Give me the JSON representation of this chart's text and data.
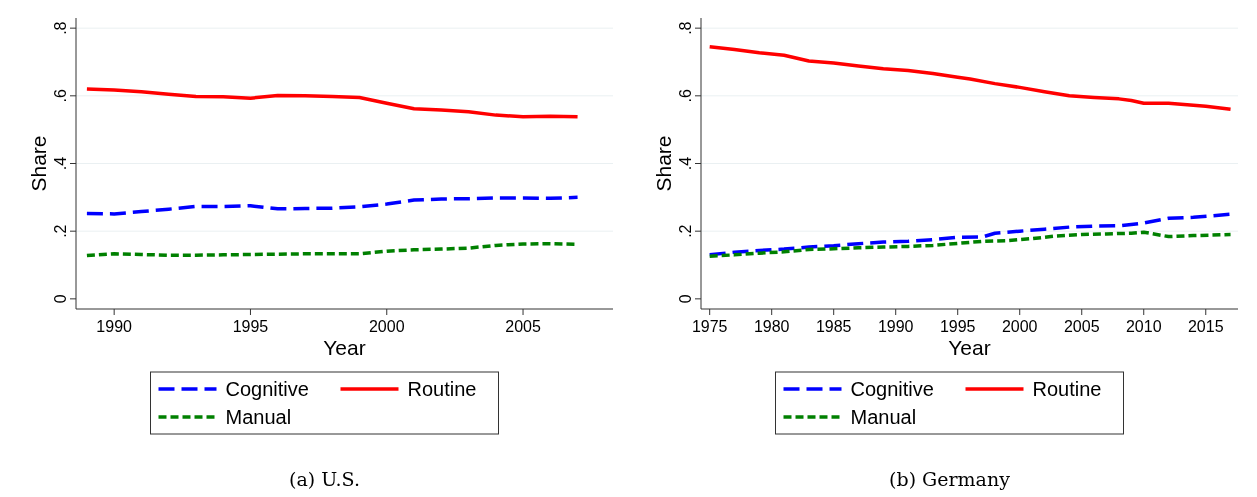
{
  "chart_data": [
    {
      "type": "line",
      "xlabel": "Year",
      "ylabel": "Share",
      "xlim": [
        1988.6,
        2008.3
      ],
      "ylim": [
        -0.03,
        0.83
      ],
      "xticks": [
        1990,
        1995,
        2000,
        2005
      ],
      "yticks": [
        0,
        {
          "value": 0.2,
          "label": ".2"
        },
        {
          "value": 0.4,
          "label": ".4"
        },
        {
          "value": 0.6,
          "label": ".6"
        },
        {
          "value": 0.8,
          "label": ".8"
        }
      ],
      "grid": "y",
      "legend": "bottom",
      "annotations": [
        "(a) U.S."
      ],
      "x": [
        1989,
        1990,
        1991,
        1992,
        1993,
        1994,
        1995,
        1996,
        1997,
        1998,
        1999,
        2000,
        2001,
        2002,
        2003,
        2004,
        2005,
        2006,
        2007
      ],
      "series": [
        {
          "name": "Cognitive",
          "color": "#0000ff",
          "line_style": "dashed",
          "values": [
            0.252,
            0.251,
            0.258,
            0.265,
            0.273,
            0.273,
            0.275,
            0.266,
            0.267,
            0.268,
            0.272,
            0.28,
            0.292,
            0.295,
            0.296,
            0.298,
            0.298,
            0.297,
            0.3
          ]
        },
        {
          "name": "Routine",
          "color": "#ff0000",
          "line_style": "solid",
          "values": [
            0.62,
            0.617,
            0.612,
            0.605,
            0.598,
            0.597,
            0.593,
            0.601,
            0.6,
            0.598,
            0.595,
            0.578,
            0.562,
            0.558,
            0.553,
            0.543,
            0.538,
            0.54,
            0.538
          ]
        },
        {
          "name": "Manual",
          "color": "#008000",
          "line_style": "dotted",
          "values": [
            0.128,
            0.133,
            0.131,
            0.129,
            0.129,
            0.13,
            0.131,
            0.132,
            0.133,
            0.133,
            0.133,
            0.141,
            0.145,
            0.147,
            0.15,
            0.158,
            0.162,
            0.163,
            0.161
          ]
        }
      ]
    },
    {
      "type": "line",
      "xlabel": "Year",
      "ylabel": "Share",
      "xlim": [
        1974.3,
        2017.6
      ],
      "ylim": [
        -0.03,
        0.83
      ],
      "xticks": [
        1975,
        1980,
        1985,
        1990,
        1995,
        2000,
        2005,
        2010,
        2015
      ],
      "yticks": [
        0,
        {
          "value": 0.2,
          "label": ".2"
        },
        {
          "value": 0.4,
          "label": ".4"
        },
        {
          "value": 0.6,
          "label": ".6"
        },
        {
          "value": 0.8,
          "label": ".8"
        }
      ],
      "grid": "y",
      "legend": "bottom",
      "annotations": [
        "(b) Germany"
      ],
      "series": [
        {
          "name": "Cognitive",
          "color": "#0000ff",
          "line_style": "dashed",
          "x": [
            1975,
            1977,
            1979,
            1981,
            1983,
            1985,
            1987,
            1989,
            1991,
            1993,
            1995,
            1997,
            1998,
            2000,
            2002,
            2004,
            2006,
            2008,
            2010,
            2012,
            2014,
            2017
          ],
          "values": [
            0.13,
            0.138,
            0.143,
            0.147,
            0.153,
            0.157,
            0.163,
            0.168,
            0.17,
            0.175,
            0.182,
            0.183,
            0.194,
            0.2,
            0.206,
            0.212,
            0.215,
            0.216,
            0.224,
            0.238,
            0.241,
            0.25
          ]
        },
        {
          "name": "Routine",
          "color": "#ff0000",
          "line_style": "solid",
          "x": [
            1975,
            1977,
            1979,
            1981,
            1983,
            1985,
            1987,
            1989,
            1991,
            1993,
            1995,
            1996,
            1998,
            2000,
            2002,
            2004,
            2006,
            2008,
            2009,
            2010,
            2012,
            2014,
            2015,
            2017
          ],
          "values": [
            0.745,
            0.737,
            0.727,
            0.72,
            0.703,
            0.697,
            0.688,
            0.68,
            0.675,
            0.666,
            0.655,
            0.65,
            0.636,
            0.625,
            0.612,
            0.6,
            0.595,
            0.591,
            0.586,
            0.578,
            0.578,
            0.572,
            0.569,
            0.56
          ]
        },
        {
          "name": "Manual",
          "color": "#008000",
          "line_style": "dotted",
          "x": [
            1975,
            1977,
            1979,
            1981,
            1983,
            1985,
            1987,
            1989,
            1991,
            1993,
            1995,
            1997,
            1999,
            2001,
            2003,
            2005,
            2007,
            2009,
            2010,
            2012,
            2014,
            2017
          ],
          "values": [
            0.126,
            0.13,
            0.135,
            0.139,
            0.146,
            0.148,
            0.151,
            0.153,
            0.155,
            0.158,
            0.164,
            0.17,
            0.172,
            0.178,
            0.186,
            0.19,
            0.192,
            0.194,
            0.197,
            0.184,
            0.187,
            0.19
          ]
        }
      ]
    }
  ]
}
